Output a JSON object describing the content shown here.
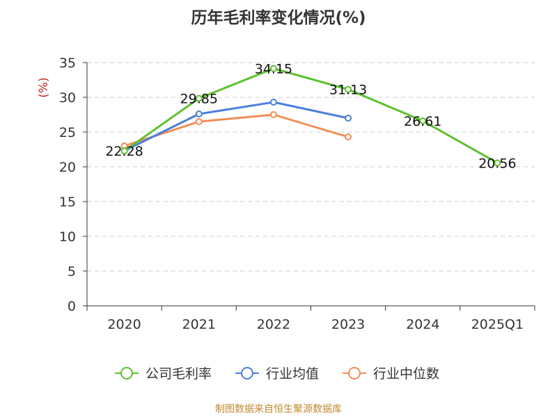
{
  "title": "历年毛利率变化情况(%)",
  "source": "制图数据来自恒生聚源数据库",
  "chart_data": {
    "type": "line",
    "title": "历年毛利率变化情况(%)",
    "xlabel": "",
    "ylabel": "(%)",
    "categories": [
      "2020",
      "2021",
      "2022",
      "2023",
      "2024",
      "2025Q1"
    ],
    "ylim": [
      0,
      35
    ],
    "yticks": [
      0,
      5,
      10,
      15,
      20,
      25,
      30,
      35
    ],
    "grid": "horizontal dashed",
    "legend_position": "bottom",
    "series": [
      {
        "name": "公司毛利率",
        "color": "#5dc02e",
        "values": [
          22.28,
          29.85,
          34.15,
          31.13,
          26.61,
          20.56
        ],
        "show_labels": true
      },
      {
        "name": "行业均值",
        "color": "#4a7fdc",
        "values": [
          22.3,
          27.6,
          29.3,
          27.0,
          null,
          null
        ],
        "show_labels": false
      },
      {
        "name": "行业中位数",
        "color": "#f28c55",
        "values": [
          23.0,
          26.5,
          27.5,
          24.3,
          null,
          null
        ],
        "show_labels": false
      }
    ]
  }
}
